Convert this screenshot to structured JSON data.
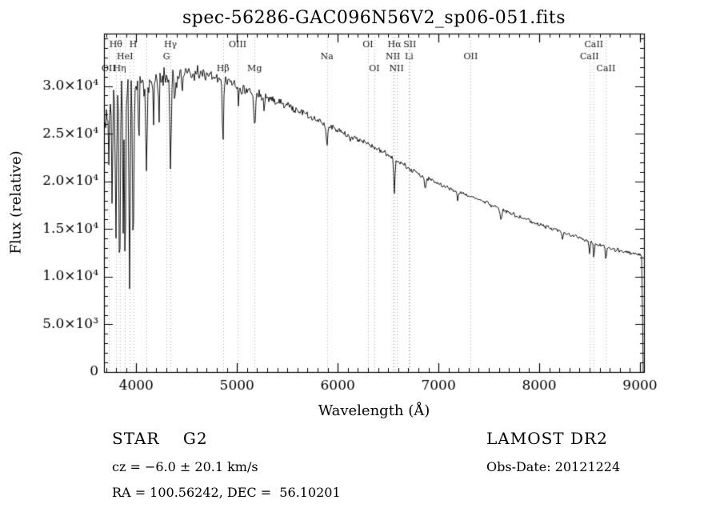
{
  "title": "spec-56286-GAC096N56V2_sp06-051.fits",
  "footer": {
    "class_label": "STAR    G2",
    "survey": "LAMOST DR2",
    "cz": "cz = −6.0 ± 20.1 km/s",
    "obs_date": "Obs-Date: 20121224",
    "radec": "RA = 100.56242, DEC =  56.10201"
  },
  "chart_data": {
    "type": "line",
    "title": "spec-56286-GAC096N56V2_sp06-051.fits",
    "xlabel": "Wavelength (Å)",
    "ylabel": "Flux (relative)",
    "xlim": [
      3680,
      9040
    ],
    "ylim": [
      0,
      35500
    ],
    "grid": false,
    "legend": "none",
    "background": "#ffffff",
    "line_color": "#000000",
    "marker_line_color": "#aaaaaa",
    "x_ticks": [
      4000,
      5000,
      6000,
      7000,
      8000,
      9000
    ],
    "x_minor_step": 100,
    "y_minor_step": 1000,
    "y_ticks": [
      {
        "value": 0,
        "label": "0"
      },
      {
        "value": 5000,
        "label": "5.0×10³"
      },
      {
        "value": 10000,
        "label": "1.0×10⁴"
      },
      {
        "value": 15000,
        "label": "1.5×10⁴"
      },
      {
        "value": 20000,
        "label": "2.0×10⁴"
      },
      {
        "value": 25000,
        "label": "2.5×10⁴"
      },
      {
        "value": 30000,
        "label": "3.0×10⁴"
      }
    ],
    "line_markers": [
      {
        "label": "OII",
        "wavelength": 3727,
        "row": 3
      },
      {
        "label": "Hθ",
        "wavelength": 3798,
        "row": 1
      },
      {
        "label": "Hη",
        "wavelength": 3835,
        "row": 3
      },
      {
        "label": "HeI",
        "wavelength": 3889,
        "row": 2
      },
      {
        "label": "",
        "wavelength": 3934,
        "row": 1
      },
      {
        "label": "H",
        "wavelength": 3970,
        "row": 1
      },
      {
        "label": "",
        "wavelength": 4101,
        "row": 1
      },
      {
        "label": "G",
        "wavelength": 4300,
        "row": 2
      },
      {
        "label": "Hγ",
        "wavelength": 4340,
        "row": 1
      },
      {
        "label": "Hβ",
        "wavelength": 4861,
        "row": 3
      },
      {
        "label": "OIII",
        "wavelength": 5007,
        "row": 1
      },
      {
        "label": "Mg",
        "wavelength": 5175,
        "row": 3
      },
      {
        "label": "Na",
        "wavelength": 5893,
        "row": 2
      },
      {
        "label": "OI",
        "wavelength": 6300,
        "row": 1
      },
      {
        "label": "OI",
        "wavelength": 6363,
        "row": 3
      },
      {
        "label": "NII",
        "wavelength": 6548,
        "row": 2
      },
      {
        "label": "Hα",
        "wavelength": 6563,
        "row": 1
      },
      {
        "label": "NII",
        "wavelength": 6583,
        "row": 3
      },
      {
        "label": "Li",
        "wavelength": 6708,
        "row": 2
      },
      {
        "label": "SII",
        "wavelength": 6716,
        "row": 1
      },
      {
        "label": "OII",
        "wavelength": 7320,
        "row": 2
      },
      {
        "label": "CaII",
        "wavelength": 8498,
        "row": 2
      },
      {
        "label": "CaII",
        "wavelength": 8542,
        "row": 1
      },
      {
        "label": "CaII",
        "wavelength": 8662,
        "row": 3
      }
    ],
    "continuum": [
      [
        3690,
        26500
      ],
      [
        3750,
        28500
      ],
      [
        3850,
        29500
      ],
      [
        3950,
        30200
      ],
      [
        4050,
        30400
      ],
      [
        4200,
        30700
      ],
      [
        4350,
        30900
      ],
      [
        4500,
        31200
      ],
      [
        4650,
        31500
      ],
      [
        4800,
        31000
      ],
      [
        4950,
        30100
      ],
      [
        5100,
        29600
      ],
      [
        5250,
        29000
      ],
      [
        5400,
        28400
      ],
      [
        5550,
        27700
      ],
      [
        5700,
        26900
      ],
      [
        5850,
        26100
      ],
      [
        6000,
        25300
      ],
      [
        6150,
        24700
      ],
      [
        6300,
        23900
      ],
      [
        6450,
        23100
      ],
      [
        6600,
        22100
      ],
      [
        6750,
        21100
      ],
      [
        6900,
        20200
      ],
      [
        7050,
        19600
      ],
      [
        7200,
        18900
      ],
      [
        7350,
        18300
      ],
      [
        7500,
        17600
      ],
      [
        7650,
        16900
      ],
      [
        7800,
        16300
      ],
      [
        7950,
        15700
      ],
      [
        8100,
        15100
      ],
      [
        8250,
        14600
      ],
      [
        8400,
        14100
      ],
      [
        8550,
        13500
      ],
      [
        8700,
        13000
      ],
      [
        8850,
        12600
      ],
      [
        9000,
        12300
      ],
      [
        9040,
        12200
      ]
    ],
    "absorption_lines": [
      {
        "center": 3727,
        "floor": 21000,
        "sigma": 5
      },
      {
        "center": 3760,
        "floor": 17000,
        "sigma": 5
      },
      {
        "center": 3798,
        "floor": 12500,
        "sigma": 6
      },
      {
        "center": 3835,
        "floor": 10500,
        "sigma": 6
      },
      {
        "center": 3870,
        "floor": 15000,
        "sigma": 4
      },
      {
        "center": 3889,
        "floor": 9500,
        "sigma": 6
      },
      {
        "center": 3934,
        "floor": 8300,
        "sigma": 6
      },
      {
        "center": 3970,
        "floor": 11500,
        "sigma": 7
      },
      {
        "center": 4026,
        "floor": 24000,
        "sigma": 4
      },
      {
        "center": 4101,
        "floor": 21000,
        "sigma": 7
      },
      {
        "center": 4172,
        "floor": 26000,
        "sigma": 4
      },
      {
        "center": 4227,
        "floor": 26500,
        "sigma": 4
      },
      {
        "center": 4340,
        "floor": 20800,
        "sigma": 7
      },
      {
        "center": 4383,
        "floor": 27000,
        "sigma": 4
      },
      {
        "center": 4455,
        "floor": 27500,
        "sigma": 4
      },
      {
        "center": 4861,
        "floor": 24200,
        "sigma": 7
      },
      {
        "center": 5015,
        "floor": 28000,
        "sigma": 4
      },
      {
        "center": 5175,
        "floor": 25800,
        "sigma": 8
      },
      {
        "center": 5270,
        "floor": 27000,
        "sigma": 5
      },
      {
        "center": 5893,
        "floor": 23900,
        "sigma": 7
      },
      {
        "center": 6122,
        "floor": 23800,
        "sigma": 4
      },
      {
        "center": 6563,
        "floor": 18900,
        "sigma": 6
      },
      {
        "center": 6870,
        "floor": 19100,
        "sigma": 7
      },
      {
        "center": 7190,
        "floor": 17900,
        "sigma": 5
      },
      {
        "center": 7620,
        "floor": 15900,
        "sigma": 8
      },
      {
        "center": 8230,
        "floor": 13900,
        "sigma": 5
      },
      {
        "center": 8498,
        "floor": 12300,
        "sigma": 5
      },
      {
        "center": 8542,
        "floor": 11900,
        "sigma": 5
      },
      {
        "center": 8662,
        "floor": 11700,
        "sigma": 5
      }
    ],
    "cutoff": {
      "start": 9018,
      "end": 9032
    },
    "noise_profile": [
      [
        3690,
        1900
      ],
      [
        3950,
        1800
      ],
      [
        4150,
        1500
      ],
      [
        4400,
        1200
      ],
      [
        4700,
        1000
      ],
      [
        5000,
        700
      ],
      [
        5400,
        500
      ],
      [
        5800,
        420
      ],
      [
        6300,
        350
      ],
      [
        7000,
        300
      ],
      [
        7800,
        270
      ],
      [
        9040,
        250
      ]
    ]
  }
}
